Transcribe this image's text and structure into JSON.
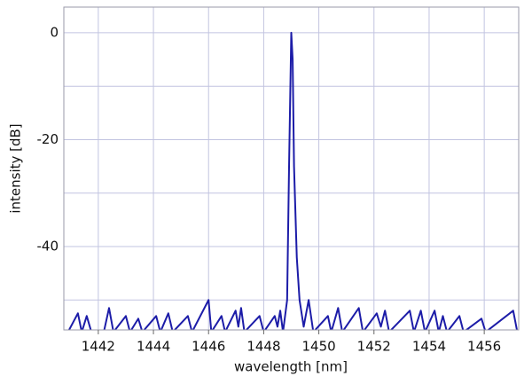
{
  "chart_data": {
    "type": "line",
    "x_label": "wavelength [nm]",
    "y_label": "intensity [dB]",
    "xlim": [
      1440.75,
      1457.25
    ],
    "xticks": [
      1442,
      1444,
      1446,
      1448,
      1450,
      1452,
      1454,
      1456
    ],
    "ylim": [
      -55.6,
      4.8
    ],
    "yticks": [
      -40,
      -20,
      0
    ],
    "minor_yticks": [
      -50,
      -30,
      -10
    ],
    "grid": true,
    "series": [
      {
        "color": "#1c1ca8",
        "x": [
          1440.9,
          1441.26,
          1441.4,
          1441.58,
          1441.75,
          1442.2,
          1442.39,
          1442.55,
          1443.0,
          1443.15,
          1443.45,
          1443.6,
          1444.1,
          1444.25,
          1444.54,
          1444.7,
          1445.25,
          1445.4,
          1446.0,
          1446.1,
          1446.47,
          1446.6,
          1446.98,
          1447.08,
          1447.18,
          1447.3,
          1447.85,
          1448.0,
          1448.4,
          1448.5,
          1448.6,
          1448.7,
          1448.85,
          1448.92,
          1449.0,
          1449.05,
          1449.1,
          1449.2,
          1449.3,
          1449.45,
          1449.63,
          1449.8,
          1450.33,
          1450.45,
          1450.7,
          1450.85,
          1451.45,
          1451.6,
          1452.1,
          1452.25,
          1452.4,
          1452.55,
          1453.3,
          1453.45,
          1453.7,
          1453.85,
          1454.2,
          1454.35,
          1454.5,
          1454.65,
          1455.1,
          1455.25,
          1455.9,
          1456.05,
          1457.05,
          1457.2
        ],
        "values": [
          -56,
          -52.5,
          -56,
          -53,
          -56,
          -56,
          -51.5,
          -56,
          -53,
          -56,
          -53.5,
          -56,
          -53,
          -56,
          -52.5,
          -56,
          -53,
          -56,
          -50,
          -56,
          -53,
          -56,
          -52,
          -55,
          -51.5,
          -56,
          -53,
          -56,
          -53,
          -55,
          -52,
          -56,
          -50,
          -25,
          0,
          -5,
          -25,
          -42,
          -50,
          -55,
          -50,
          -56,
          -53,
          -56,
          -51.5,
          -56,
          -51.5,
          -56,
          -52.5,
          -55,
          -52,
          -56,
          -52,
          -56,
          -52,
          -56,
          -52,
          -56,
          -53,
          -56,
          -53,
          -56,
          -53.5,
          -56,
          -52,
          -56
        ]
      }
    ]
  }
}
